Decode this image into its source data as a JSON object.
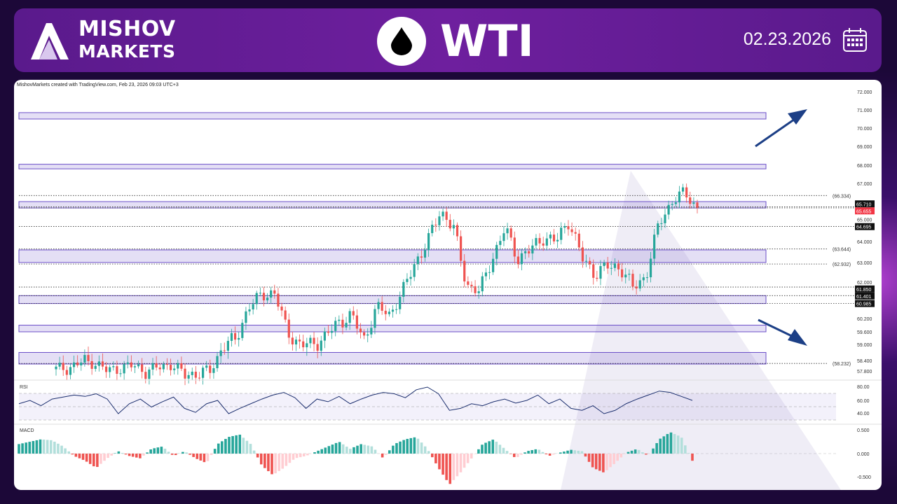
{
  "header": {
    "brand_line1": "MISHOV",
    "brand_line2": "MARKETS",
    "instrument": "WTI",
    "date": "02.23.2026"
  },
  "chart": {
    "credit": "MishovMarkets created with TradingView.com, Feb 23, 2026 09:03 UTC+3"
  },
  "colors": {
    "up": "#26a69a",
    "down": "#ef5350",
    "zone": "#6b4fc8",
    "arrow": "#1c3f86",
    "rsi": "#1c2f6e"
  },
  "chart_data": {
    "type": "candlestick",
    "price_ticks": [
      72,
      71,
      70,
      69,
      68,
      67,
      65,
      64,
      63,
      62,
      60.2,
      59.6,
      59,
      58.4,
      57.8
    ],
    "price_tick_labels": [
      "72.000",
      "71.000",
      "70.000",
      "69.000",
      "68.000",
      "67.000",
      "65.000",
      "64.000",
      "63.000",
      "62.000",
      "60.200",
      "59.600",
      "59.000",
      "58.400",
      "57.800"
    ],
    "close_path": [
      57.9,
      58.0,
      58.3,
      58.3,
      57.8,
      58.0,
      58.1,
      57.8,
      58.0,
      58.2,
      57.6,
      57.7,
      57.8,
      59.0,
      59.2,
      60.8,
      61.4,
      61.6,
      59.6,
      59.0,
      59.0,
      59.4,
      60.0,
      60.4,
      59.2,
      60.8,
      60.4,
      61.6,
      63.0,
      64.0,
      65.5,
      64.6,
      62.0,
      61.6,
      63.2,
      64.6,
      63.2,
      63.6,
      64.2,
      64.0,
      65.0,
      63.2,
      62.5,
      62.8,
      62.8,
      61.8,
      62.4,
      64.8,
      66.0,
      66.5,
      65.655
    ],
    "zones": [
      [
        70.5,
        70.85
      ],
      [
        67.8,
        68.05
      ],
      [
        65.65,
        66.0
      ],
      [
        63.0,
        63.6
      ],
      [
        60.985,
        61.4
      ],
      [
        59.6,
        59.9
      ],
      [
        58.2,
        58.7
      ]
    ],
    "levels": [
      {
        "value": 66.334,
        "label": "(66.334)",
        "boxed": false
      },
      {
        "value": 65.71,
        "label": "65.710",
        "boxed": true,
        "color": "#111"
      },
      {
        "value": 65.655,
        "label": "65.655",
        "boxed": true,
        "color": "#f23645"
      },
      {
        "value": 64.695,
        "label": "64.695",
        "boxed": true,
        "color": "#111"
      },
      {
        "value": 63.644,
        "label": "(63.644)",
        "boxed": false
      },
      {
        "value": 62.932,
        "label": "(62.932)",
        "boxed": false
      },
      {
        "value": 61.85,
        "label": "61.850",
        "boxed": true,
        "color": "#111"
      },
      {
        "value": 61.401,
        "label": "61.401",
        "boxed": true,
        "color": "#111"
      },
      {
        "value": 60.985,
        "label": "60.985",
        "boxed": true,
        "color": "#111"
      },
      {
        "value": 58.232,
        "label": "(58.232)",
        "boxed": false
      }
    ],
    "rsi": {
      "label": "RSI",
      "ticks": [
        "80.00",
        "60.00",
        "40.00"
      ],
      "values": [
        55,
        60,
        52,
        62,
        65,
        68,
        66,
        70,
        62,
        40,
        55,
        62,
        50,
        58,
        65,
        48,
        42,
        55,
        60,
        40,
        48,
        55,
        62,
        68,
        72,
        64,
        48,
        62,
        58,
        66,
        55,
        62,
        68,
        72,
        70,
        64,
        76,
        80,
        70,
        45,
        48,
        55,
        52,
        58,
        62,
        56,
        60,
        68,
        55,
        62,
        48,
        45,
        52,
        40,
        45,
        55,
        62,
        68,
        74,
        72,
        66,
        60
      ]
    },
    "macd": {
      "label": "MACD",
      "ticks": [
        "0.500",
        "0.000",
        "-0.500"
      ],
      "values": [
        0.2,
        0.25,
        0.3,
        0.28,
        0.15,
        -0.05,
        -0.15,
        -0.3,
        -0.1,
        0.05,
        -0.05,
        -0.1,
        0.1,
        0.15,
        -0.05,
        0.05,
        -0.1,
        -0.2,
        0.2,
        0.35,
        0.4,
        0.2,
        -0.25,
        -0.45,
        -0.3,
        -0.1,
        -0.05,
        0.05,
        0.15,
        0.25,
        0.1,
        0.2,
        0.15,
        -0.1,
        0.2,
        0.3,
        0.35,
        0.1,
        -0.3,
        -0.65,
        -0.4,
        -0.1,
        0.2,
        0.3,
        0.1,
        -0.1,
        0.05,
        0.1,
        -0.05,
        0.02,
        0.08,
        0.05,
        -0.3,
        -0.4,
        -0.2,
        0.02,
        0.1,
        -0.05,
        0.3,
        0.45,
        0.35,
        -0.15
      ]
    }
  }
}
